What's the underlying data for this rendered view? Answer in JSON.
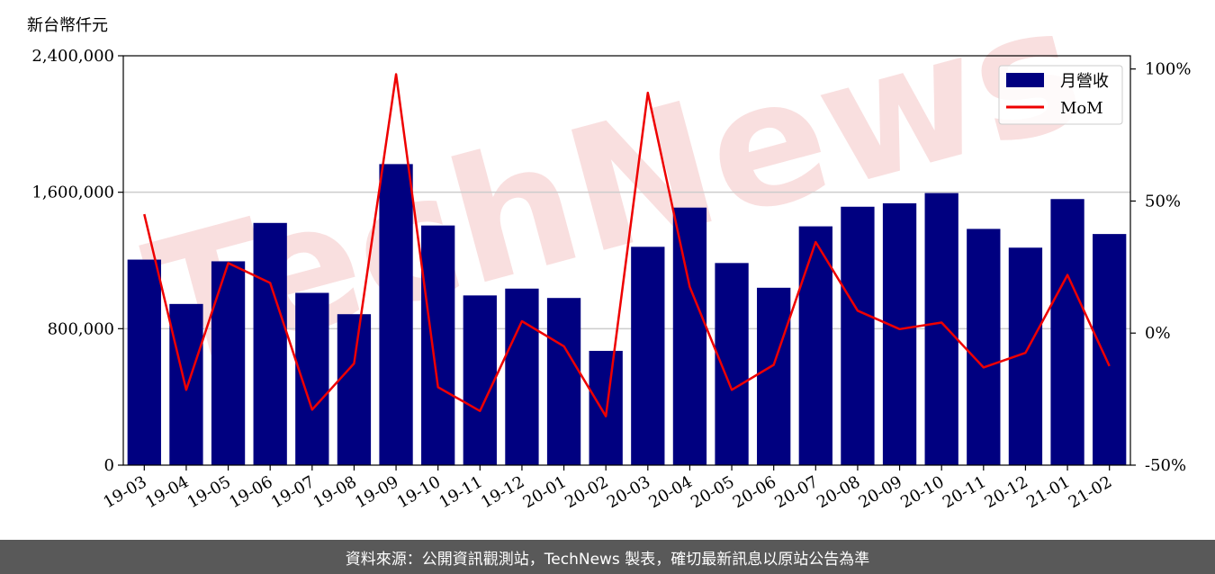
{
  "footer": {
    "text": "資料來源：公開資訊觀測站，TechNews 製表，確切最新訊息以原站公告為準"
  },
  "watermark": {
    "text": "TechNews",
    "color": "#f2b8b8"
  },
  "colors": {
    "bar": "#000080",
    "line": "#ee0000",
    "grid": "#cccccc"
  },
  "chart_data": {
    "type": "bar",
    "unit_label": "新台幣仟元",
    "categories": [
      "19-03",
      "19-04",
      "19-05",
      "19-06",
      "19-07",
      "19-08",
      "19-09",
      "19-10",
      "19-11",
      "19-12",
      "20-01",
      "20-02",
      "20-03",
      "20-04",
      "20-05",
      "20-06",
      "20-07",
      "20-08",
      "20-09",
      "20-10",
      "20-11",
      "20-12",
      "21-01",
      "21-02"
    ],
    "series": [
      {
        "name": "月營收",
        "type": "bar",
        "axis": "left",
        "values": [
          1205000,
          945000,
          1195000,
          1420000,
          1010000,
          885000,
          1765000,
          1405000,
          995000,
          1035000,
          980000,
          670000,
          1280000,
          1510000,
          1185000,
          1040000,
          1400000,
          1515000,
          1535000,
          1595000,
          1385000,
          1275000,
          1560000,
          1355000
        ]
      },
      {
        "name": "MoM",
        "type": "line",
        "axis": "right",
        "values": [
          45,
          -21.5,
          26.5,
          19,
          -29,
          -11.5,
          98,
          -20.5,
          -29.5,
          4.5,
          -5,
          -31.5,
          91,
          17.5,
          -21.5,
          -12,
          34.5,
          8.5,
          1.5,
          4,
          -13,
          -7.5,
          22,
          -12.5
        ]
      }
    ],
    "yleft": {
      "lim": [
        0,
        2400000
      ],
      "ticks": [
        0,
        800000,
        1600000,
        2400000
      ],
      "tick_labels": [
        "0",
        "800,000",
        "1,600,000",
        "2,400,000"
      ]
    },
    "yright": {
      "lim": [
        -50,
        105
      ],
      "ticks": [
        -50,
        0,
        50,
        100
      ],
      "tick_labels": [
        "-50%",
        "0%",
        "50%",
        "100%"
      ]
    },
    "grid": true,
    "legend": "top-right"
  }
}
